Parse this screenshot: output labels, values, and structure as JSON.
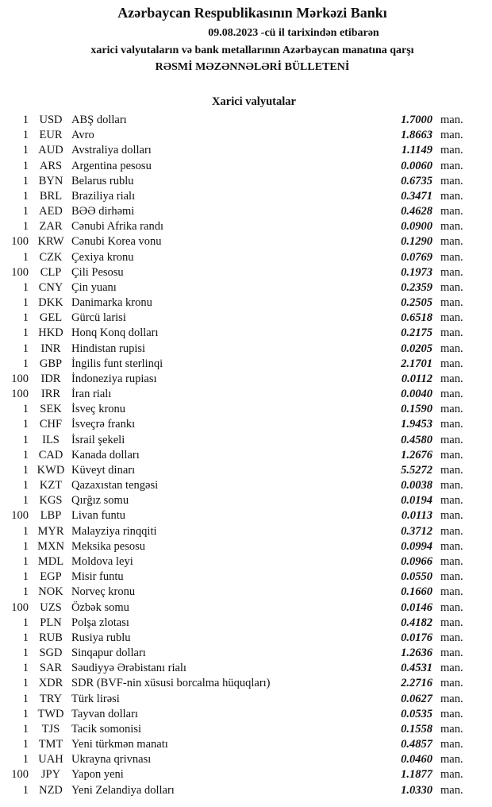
{
  "header": {
    "bank": "Azərbaycan Respublikasının Mərkəzi Bankı",
    "date_line": "09.08.2023  -cü il tarixindən etibarən",
    "subtitle": "xarici valyutaların və bank metallarının Azərbaycan manatına qarşı",
    "title": "RƏSMİ MƏZƏNNƏLƏRİ BÜLLETENİ"
  },
  "section_title": "Xarici valyutalar",
  "unit_label": "man.",
  "rates": [
    {
      "nominal": "1",
      "code": "USD",
      "name": "ABŞ dolları",
      "value": "1.7000"
    },
    {
      "nominal": "1",
      "code": "EUR",
      "name": "Avro",
      "value": "1.8663"
    },
    {
      "nominal": "1",
      "code": "AUD",
      "name": "Avstraliya dolları",
      "value": "1.1149"
    },
    {
      "nominal": "1",
      "code": "ARS",
      "name": "Argentina pesosu",
      "value": "0.0060"
    },
    {
      "nominal": "1",
      "code": "BYN",
      "name": "Belarus rublu",
      "value": "0.6735"
    },
    {
      "nominal": "1",
      "code": "BRL",
      "name": "Braziliya rialı",
      "value": "0.3471"
    },
    {
      "nominal": "1",
      "code": "AED",
      "name": "BƏƏ dirhəmi",
      "value": "0.4628"
    },
    {
      "nominal": "1",
      "code": "ZAR",
      "name": "Cənubi Afrika randı",
      "value": "0.0900"
    },
    {
      "nominal": "100",
      "code": "KRW",
      "name": "Cənubi Korea vonu",
      "value": "0.1290"
    },
    {
      "nominal": "1",
      "code": "CZK",
      "name": "Çexiya kronu",
      "value": "0.0769"
    },
    {
      "nominal": "100",
      "code": "CLP",
      "name": "Çili Pesosu",
      "value": "0.1973"
    },
    {
      "nominal": "1",
      "code": "CNY",
      "name": "Çin yuanı",
      "value": "0.2359"
    },
    {
      "nominal": "1",
      "code": "DKK",
      "name": "Danimarka kronu",
      "value": "0.2505"
    },
    {
      "nominal": "1",
      "code": "GEL",
      "name": "Gürcü larisi",
      "value": "0.6518"
    },
    {
      "nominal": "1",
      "code": "HKD",
      "name": "Honq Konq dolları",
      "value": "0.2175"
    },
    {
      "nominal": "1",
      "code": "INR",
      "name": "Hindistan rupisi",
      "value": "0.0205"
    },
    {
      "nominal": "1",
      "code": "GBP",
      "name": "İngilis funt sterlinqi",
      "value": "2.1701"
    },
    {
      "nominal": "100",
      "code": "IDR",
      "name": "İndoneziya rupiası",
      "value": "0.0112"
    },
    {
      "nominal": "100",
      "code": "IRR",
      "name": "İran rialı",
      "value": "0.0040"
    },
    {
      "nominal": "1",
      "code": "SEK",
      "name": "İsveç kronu",
      "value": "0.1590"
    },
    {
      "nominal": "1",
      "code": "CHF",
      "name": "İsveçrə frankı",
      "value": "1.9453"
    },
    {
      "nominal": "1",
      "code": "ILS",
      "name": "İsrail şekeli",
      "value": "0.4580"
    },
    {
      "nominal": "1",
      "code": "CAD",
      "name": "Kanada dolları",
      "value": "1.2676"
    },
    {
      "nominal": "1",
      "code": "KWD",
      "name": "Küveyt dinarı",
      "value": "5.5272"
    },
    {
      "nominal": "1",
      "code": "KZT",
      "name": "Qazaxıstan tengəsi",
      "value": "0.0038"
    },
    {
      "nominal": "1",
      "code": "KGS",
      "name": "Qırğız somu",
      "value": "0.0194"
    },
    {
      "nominal": "100",
      "code": "LBP",
      "name": "Livan funtu",
      "value": "0.0113"
    },
    {
      "nominal": "1",
      "code": "MYR",
      "name": "Malayziya rinqqiti",
      "value": "0.3712"
    },
    {
      "nominal": "1",
      "code": "MXN",
      "name": "Meksika pesosu",
      "value": "0.0994"
    },
    {
      "nominal": "1",
      "code": "MDL",
      "name": "Moldova leyi",
      "value": "0.0966"
    },
    {
      "nominal": "1",
      "code": "EGP",
      "name": "Misir funtu",
      "value": "0.0550"
    },
    {
      "nominal": "1",
      "code": "NOK",
      "name": "Norveç kronu",
      "value": "0.1660"
    },
    {
      "nominal": "100",
      "code": "UZS",
      "name": "Özbək somu",
      "value": "0.0146"
    },
    {
      "nominal": "1",
      "code": "PLN",
      "name": "Polşa zlotası",
      "value": "0.4182"
    },
    {
      "nominal": "1",
      "code": "RUB",
      "name": "Rusiya rublu",
      "value": "0.0176"
    },
    {
      "nominal": "1",
      "code": "SGD",
      "name": "Sinqapur dolları",
      "value": "1.2636"
    },
    {
      "nominal": "1",
      "code": "SAR",
      "name": "Səudiyyə Ərəbistanı rialı",
      "value": "0.4531"
    },
    {
      "nominal": "1",
      "code": "XDR",
      "name": "SDR (BVF-nin xüsusi borcalma hüquqları)",
      "value": "2.2716"
    },
    {
      "nominal": "1",
      "code": "TRY",
      "name": "Türk lirəsi",
      "value": "0.0627"
    },
    {
      "nominal": "1",
      "code": "TWD",
      "name": "Tayvan dolları",
      "value": "0.0535"
    },
    {
      "nominal": "1",
      "code": "TJS",
      "name": "Tacik somonisi",
      "value": "0.1558"
    },
    {
      "nominal": "1",
      "code": "TMT",
      "name": "Yeni türkmən manatı",
      "value": "0.4857"
    },
    {
      "nominal": "1",
      "code": "UAH",
      "name": "Ukrayna qrivnası",
      "value": "0.0460"
    },
    {
      "nominal": "100",
      "code": "JPY",
      "name": "Yapon yeni",
      "value": "1.1877"
    },
    {
      "nominal": "1",
      "code": "NZD",
      "name": "Yeni Zelandiya dolları",
      "value": "1.0330"
    }
  ]
}
